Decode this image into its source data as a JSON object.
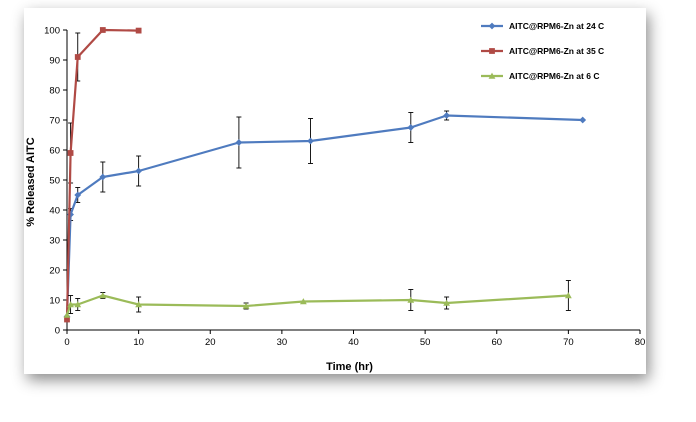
{
  "chart_data": {
    "type": "line",
    "title": "",
    "xlabel": "Time (hr)",
    "ylabel": "% Released AITC",
    "xlim": [
      0,
      80
    ],
    "ylim": [
      0,
      100
    ],
    "x_ticks": [
      0,
      10,
      20,
      30,
      40,
      50,
      60,
      70,
      80
    ],
    "y_ticks": [
      0,
      10,
      20,
      30,
      40,
      50,
      60,
      70,
      80,
      90,
      100
    ],
    "grid": false,
    "legend_position": "top-right",
    "series": [
      {
        "name": "AITC@RPM6-Zn at 24 C",
        "color": "#4f7bbf",
        "marker": "diamond",
        "x": [
          0,
          0.5,
          1.5,
          5,
          10,
          24,
          34,
          48,
          53,
          72
        ],
        "y": [
          4.5,
          38.5,
          45,
          51,
          53,
          62.5,
          63,
          67.5,
          71.5,
          70
        ],
        "error": [
          0,
          2,
          2.5,
          5,
          5,
          8.5,
          7.5,
          5,
          1.5,
          0
        ]
      },
      {
        "name": "AITC@RPM6-Zn at 35 C",
        "color": "#b04a45",
        "marker": "square",
        "x": [
          0,
          0.5,
          1.5,
          5,
          10
        ],
        "y": [
          3.5,
          59,
          91,
          100,
          99.8
        ],
        "error": [
          0,
          10,
          8,
          0,
          0
        ]
      },
      {
        "name": "AITC@RPM6-Zn at 6 C",
        "color": "#9bbb59",
        "marker": "triangle",
        "x": [
          0,
          0.5,
          1.5,
          5,
          10,
          25,
          33,
          48,
          53,
          70
        ],
        "y": [
          5,
          8.5,
          8.5,
          11.5,
          8.5,
          8,
          9.5,
          10,
          9,
          11.5
        ],
        "error": [
          0,
          3,
          2,
          1,
          2.5,
          1,
          0,
          3.5,
          2,
          5
        ]
      }
    ]
  }
}
